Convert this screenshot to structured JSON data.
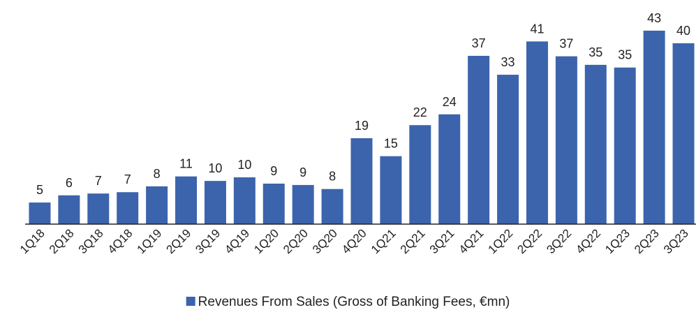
{
  "chart_data": {
    "type": "bar",
    "categories": [
      "1Q18",
      "2Q18",
      "3Q18",
      "4Q18",
      "1Q19",
      "2Q19",
      "3Q19",
      "4Q19",
      "1Q20",
      "2Q20",
      "3Q20",
      "4Q20",
      "1Q21",
      "2Q21",
      "3Q21",
      "4Q21",
      "1Q22",
      "2Q22",
      "3Q22",
      "4Q22",
      "1Q23",
      "2Q23",
      "3Q23"
    ],
    "series": [
      {
        "name": "Revenues From Sales (Gross of Banking Fees, €mn)",
        "color": "#3c64ad",
        "values": [
          4.8,
          6.4,
          6.8,
          7.1,
          8.4,
          10.6,
          9.6,
          10.4,
          9.0,
          8.7,
          7.8,
          19.1,
          15.1,
          22.0,
          24.4,
          37.4,
          33.2,
          40.6,
          37.3,
          35.4,
          34.8,
          43.0,
          40.2
        ],
        "value_labels": [
          "5",
          "6",
          "7",
          "7",
          "8",
          "11",
          "10",
          "10",
          "9",
          "9",
          "8",
          "19",
          "15",
          "22",
          "24",
          "37",
          "33",
          "41",
          "37",
          "35",
          "35",
          "43",
          "40"
        ]
      }
    ],
    "ylim": [
      0,
      45
    ]
  }
}
